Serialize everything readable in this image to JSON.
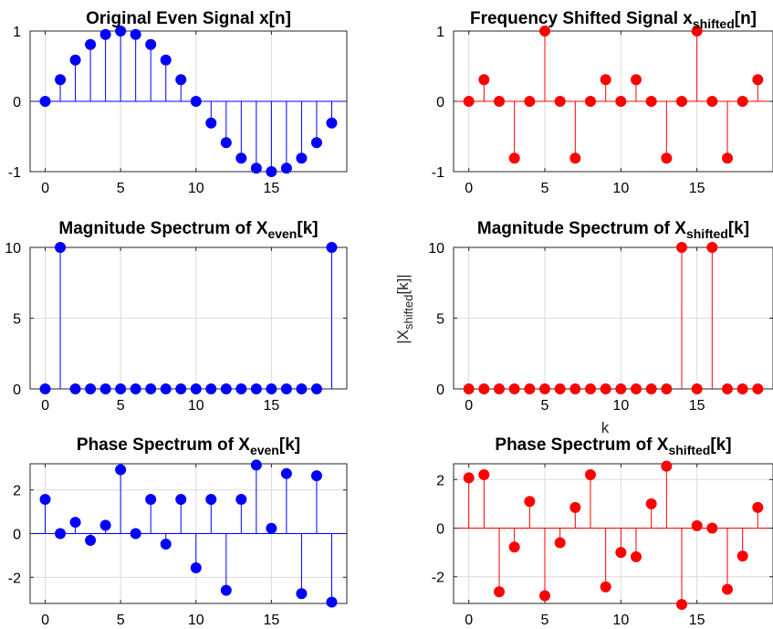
{
  "figure": {
    "background": "#ffffff"
  },
  "chart_data": [
    {
      "id": "p1",
      "type": "stem",
      "title": "Original Even Signal x[n]",
      "title_parts": [
        {
          "text": "Original Even Signal x[n]"
        }
      ],
      "xlabel": "",
      "ylabel": "",
      "color": "#0000ff",
      "x": [
        0,
        1,
        2,
        3,
        4,
        5,
        6,
        7,
        8,
        9,
        10,
        11,
        12,
        13,
        14,
        15,
        16,
        17,
        18,
        19
      ],
      "y": [
        0,
        0.309,
        0.588,
        0.809,
        0.951,
        1,
        0.951,
        0.809,
        0.588,
        0.309,
        0,
        -0.309,
        -0.588,
        -0.809,
        -0.951,
        -1,
        -0.951,
        -0.809,
        -0.588,
        -0.309
      ],
      "xlim": [
        -1,
        20
      ],
      "ylim": [
        -1,
        1
      ],
      "xticks": [
        0,
        5,
        10,
        15
      ],
      "xtick_labels": [
        "0",
        "5",
        "10",
        "15"
      ],
      "yticks": [
        -1,
        0,
        1
      ],
      "ytick_labels": [
        "-1",
        "0",
        "1"
      ],
      "grid": true
    },
    {
      "id": "p2",
      "type": "stem",
      "title": "Frequency Shifted Signal x_shifted[n]",
      "title_parts": [
        {
          "text": "Frequency Shifted Signal x"
        },
        {
          "text": "shifted",
          "sub": true
        },
        {
          "text": "[n]"
        }
      ],
      "xlabel": "",
      "ylabel": "",
      "color": "#ff0000",
      "x": [
        0,
        1,
        2,
        3,
        4,
        5,
        6,
        7,
        8,
        9,
        10,
        11,
        12,
        13,
        14,
        15,
        16,
        17,
        18,
        19
      ],
      "y": [
        0,
        0.309,
        0,
        -0.809,
        0,
        1,
        0,
        -0.809,
        0,
        0.309,
        0,
        0.309,
        0,
        -0.809,
        0,
        1,
        0,
        -0.809,
        0,
        0.309
      ],
      "xlim": [
        -1,
        20
      ],
      "ylim": [
        -1,
        1
      ],
      "xticks": [
        0,
        5,
        10,
        15
      ],
      "xtick_labels": [
        "0",
        "5",
        "10",
        "15"
      ],
      "yticks": [
        -1,
        0,
        1
      ],
      "ytick_labels": [
        "-1",
        "0",
        "1"
      ],
      "grid": true
    },
    {
      "id": "p3",
      "type": "stem",
      "title": "Magnitude Spectrum of X_even[k]",
      "title_parts": [
        {
          "text": "Magnitude Spectrum of X"
        },
        {
          "text": "even",
          "sub": true
        },
        {
          "text": "[k]"
        }
      ],
      "xlabel": "",
      "ylabel": "",
      "color": "#0000ff",
      "x": [
        0,
        1,
        2,
        3,
        4,
        5,
        6,
        7,
        8,
        9,
        10,
        11,
        12,
        13,
        14,
        15,
        16,
        17,
        18,
        19
      ],
      "y": [
        0,
        10,
        0,
        0,
        0,
        0,
        0,
        0,
        0,
        0,
        0,
        0,
        0,
        0,
        0,
        0,
        0,
        0,
        0,
        10
      ],
      "xlim": [
        -1,
        20
      ],
      "ylim": [
        0,
        10
      ],
      "xticks": [
        0,
        5,
        10,
        15
      ],
      "xtick_labels": [
        "0",
        "5",
        "10",
        "15"
      ],
      "yticks": [
        0,
        5,
        10
      ],
      "ytick_labels": [
        "0",
        "5",
        "10"
      ],
      "grid": true
    },
    {
      "id": "p4",
      "type": "stem",
      "title": "Magnitude Spectrum of X_shifted[k]",
      "title_parts": [
        {
          "text": "Magnitude Spectrum of X"
        },
        {
          "text": "shifted",
          "sub": true
        },
        {
          "text": "[k]"
        }
      ],
      "xlabel": "k",
      "xlabel_parts": [
        {
          "text": "k"
        }
      ],
      "ylabel": "|X_shifted[k]|",
      "ylabel_parts": [
        {
          "text": "|X"
        },
        {
          "text": "shifted",
          "sub": true
        },
        {
          "text": "[k]|"
        }
      ],
      "color": "#ff0000",
      "x": [
        0,
        1,
        2,
        3,
        4,
        5,
        6,
        7,
        8,
        9,
        10,
        11,
        12,
        13,
        14,
        15,
        16,
        17,
        18,
        19
      ],
      "y": [
        0,
        0,
        0,
        0,
        0,
        0,
        0,
        0,
        0,
        0,
        0,
        0,
        0,
        0,
        10,
        0,
        10,
        0,
        0,
        0
      ],
      "xlim": [
        -1,
        20
      ],
      "ylim": [
        0,
        10
      ],
      "xticks": [
        0,
        5,
        10,
        15
      ],
      "xtick_labels": [
        "0",
        "5",
        "10",
        "15"
      ],
      "yticks": [
        0,
        5,
        10
      ],
      "ytick_labels": [
        "0",
        "5",
        "10"
      ],
      "grid": true
    },
    {
      "id": "p5",
      "type": "stem",
      "title": "Phase Spectrum of X_even[k]",
      "title_parts": [
        {
          "text": "Phase Spectrum of X"
        },
        {
          "text": "even",
          "sub": true
        },
        {
          "text": "[k]"
        }
      ],
      "xlabel": "",
      "ylabel": "",
      "color": "#0000ff",
      "x": [
        0,
        1,
        2,
        3,
        4,
        5,
        6,
        7,
        8,
        9,
        10,
        11,
        12,
        13,
        14,
        15,
        16,
        17,
        18,
        19
      ],
      "y": [
        1.57,
        0,
        0.52,
        -0.31,
        0.38,
        2.93,
        0,
        1.57,
        -0.48,
        1.57,
        -1.57,
        1.57,
        -2.6,
        1.57,
        3.14,
        0.24,
        2.75,
        -2.75,
        2.65,
        -3.14
      ],
      "xlim": [
        -1,
        20
      ],
      "ylim": [
        -3.2,
        3.2
      ],
      "xticks": [
        0,
        5,
        10,
        15
      ],
      "xtick_labels": [
        "0",
        "5",
        "10",
        "15"
      ],
      "yticks": [
        -2,
        0,
        2
      ],
      "ytick_labels": [
        "-2",
        "0",
        "2"
      ],
      "grid": true
    },
    {
      "id": "p6",
      "type": "stem",
      "title": "Phase Spectrum of X_shifted[k]",
      "title_parts": [
        {
          "text": "Phase Spectrum of X"
        },
        {
          "text": "shifted",
          "sub": true
        },
        {
          "text": "[k]"
        }
      ],
      "xlabel": "",
      "ylabel": "",
      "color": "#ff0000",
      "x": [
        0,
        1,
        2,
        3,
        4,
        5,
        6,
        7,
        8,
        9,
        10,
        11,
        12,
        13,
        14,
        15,
        16,
        17,
        18,
        19
      ],
      "y": [
        2.07,
        2.2,
        -2.62,
        -0.78,
        1.1,
        -2.78,
        -0.6,
        0.85,
        2.2,
        -2.42,
        -1.0,
        -1.18,
        1.0,
        2.55,
        -3.14,
        0.1,
        0,
        -2.52,
        -1.15,
        0.85
      ],
      "xlim": [
        -1,
        20
      ],
      "ylim": [
        -3.1,
        2.65
      ],
      "xticks": [
        0,
        5,
        10,
        15
      ],
      "xtick_labels": [
        "0",
        "5",
        "10",
        "15"
      ],
      "yticks": [
        -2,
        0,
        2
      ],
      "ytick_labels": [
        "-2",
        "0",
        "2"
      ],
      "grid": true
    }
  ]
}
